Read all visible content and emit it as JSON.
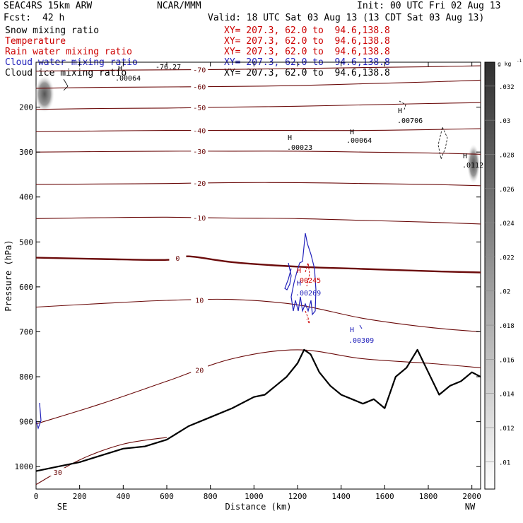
{
  "header": {
    "model": "SEAC4RS 15km ARW",
    "center": "NCAR/MMM",
    "init": "Init: 00 UTC Fri 02 Aug 13",
    "fcst_label": "Fcst:",
    "fcst_value": "42 h",
    "valid": "Valid: 18 UTC Sat 03 Aug 13 (13 CDT Sat 03 Aug 13)"
  },
  "fields": [
    {
      "name": "Snow mixing ratio",
      "xy": "XY= 207.3, 62.0 to  94.6,138.8",
      "color": "#000000"
    },
    {
      "name": "Temperature",
      "xy": "XY= 207.3, 62.0 to  94.6,138.8",
      "color": "#cc0000"
    },
    {
      "name": "Rain water mixing ratio",
      "xy": "XY= 207.3, 62.0 to  94.6,138.8",
      "color": "#cc0000"
    },
    {
      "name": "Cloud water mixing ratio",
      "xy": "XY= 207.3, 62.0 to  94.6,138.8",
      "color": "#2222bb"
    },
    {
      "name": "Cloud ice mixing ratio",
      "xy": "XY= 207.3, 62.0 to  94.6,138.8",
      "color": "#000000"
    }
  ],
  "chart_data": {
    "type": "line",
    "xlabel": "Distance (km)",
    "ylabel": "Pressure (hPa)",
    "xlim": [
      0,
      2040
    ],
    "ylim": [
      1050,
      100
    ],
    "x_ticks": [
      0,
      200,
      400,
      600,
      800,
      1000,
      1200,
      1400,
      1600,
      1800,
      2000
    ],
    "y_ticks": [
      200,
      300,
      400,
      500,
      600,
      700,
      800,
      900,
      1000
    ],
    "x_tick_labels": [
      "0",
      "200",
      "400",
      "600",
      "800",
      "1000",
      "1200",
      "1400",
      "1600",
      "1800",
      "2000"
    ],
    "y_tick_labels": [
      "200",
      "300",
      "400",
      "500",
      "600",
      "700",
      "800",
      "900",
      "1000"
    ],
    "left_end_label": "SE",
    "right_end_label": "NW",
    "colorbar": {
      "unit": "g kg",
      "unit_exponent": "-1",
      "ticks": [
        ".01",
        ".012",
        ".014",
        ".016",
        ".018",
        ".02",
        ".022",
        ".024",
        ".026",
        ".028",
        ".03",
        ".032"
      ]
    },
    "temperature_contours": [
      {
        "label": "-70",
        "x": [
          0,
          300,
          600,
          900,
          1200,
          1500,
          1800,
          2040
        ],
        "p": [
          120,
          118,
          117,
          116,
          114,
          112,
          110,
          108
        ]
      },
      {
        "label": "-60",
        "x": [
          0,
          300,
          600,
          900,
          1200,
          1500,
          1800,
          2040
        ],
        "p": [
          158,
          156,
          155,
          154,
          152,
          148,
          144,
          140
        ]
      },
      {
        "label": "-50",
        "x": [
          0,
          300,
          600,
          900,
          1200,
          1500,
          1800,
          2040
        ],
        "p": [
          205,
          203,
          202,
          200,
          198,
          195,
          192,
          190
        ]
      },
      {
        "label": "-40",
        "x": [
          0,
          300,
          600,
          900,
          1200,
          1500,
          1800,
          2040
        ],
        "p": [
          255,
          253,
          252,
          252,
          252,
          252,
          250,
          248
        ]
      },
      {
        "label": "-30",
        "x": [
          0,
          300,
          600,
          900,
          1200,
          1500,
          1800,
          2040
        ],
        "p": [
          300,
          299,
          298,
          298,
          298,
          300,
          302,
          305
        ]
      },
      {
        "label": "-20",
        "x": [
          0,
          300,
          600,
          900,
          1200,
          1500,
          1800,
          2040
        ],
        "p": [
          372,
          371,
          370,
          368,
          368,
          370,
          372,
          375
        ]
      },
      {
        "label": "-10",
        "x": [
          0,
          300,
          600,
          900,
          1200,
          1500,
          1800,
          2040
        ],
        "p": [
          448,
          446,
          445,
          447,
          448,
          452,
          456,
          460
        ]
      },
      {
        "label": "0",
        "x": [
          0,
          300,
          600,
          700,
          900,
          1200,
          1500,
          1800,
          2040
        ],
        "p": [
          535,
          538,
          540,
          532,
          545,
          555,
          560,
          565,
          568
        ]
      },
      {
        "label": "10",
        "x": [
          0,
          300,
          600,
          900,
          1200,
          1500,
          1800,
          2040
        ],
        "p": [
          645,
          637,
          630,
          628,
          640,
          670,
          690,
          700
        ]
      },
      {
        "label": "20",
        "x": [
          0,
          300,
          600,
          900,
          1200,
          1500,
          1800,
          2040
        ],
        "p": [
          905,
          860,
          810,
          760,
          740,
          760,
          770,
          780
        ]
      },
      {
        "label": "30",
        "x": [
          0,
          200,
          400,
          600
        ],
        "p": [
          1040,
          985,
          950,
          935
        ]
      }
    ],
    "terrain": {
      "x": [
        0,
        100,
        200,
        300,
        400,
        500,
        600,
        700,
        800,
        900,
        1000,
        1050,
        1100,
        1150,
        1200,
        1230,
        1260,
        1300,
        1350,
        1400,
        1450,
        1500,
        1550,
        1600,
        1650,
        1700,
        1750,
        1800,
        1850,
        1900,
        1950,
        2000,
        2040
      ],
      "p": [
        1010,
        1000,
        990,
        975,
        960,
        955,
        940,
        910,
        890,
        870,
        845,
        840,
        820,
        800,
        770,
        740,
        750,
        790,
        820,
        840,
        850,
        860,
        850,
        870,
        800,
        780,
        740,
        790,
        840,
        820,
        810,
        790,
        800
      ]
    },
    "annotations": [
      {
        "text": "H",
        "color": "#000000"
      },
      {
        "text": ".00064",
        "color": "#000000"
      },
      {
        "text": "-76.27",
        "color": "#000000"
      },
      {
        "text": "H",
        "color": "#000000"
      },
      {
        "text": ".00706",
        "color": "#000000"
      },
      {
        "text": "H",
        "color": "#000000"
      },
      {
        "text": ".00023",
        "color": "#000000"
      },
      {
        "text": "H",
        "color": "#000000"
      },
      {
        "text": ".00064",
        "color": "#000000"
      },
      {
        "text": "H",
        "color": "#000000"
      },
      {
        "text": ".0112",
        "color": "#000000"
      },
      {
        "text": "H",
        "color": "#cc0000"
      },
      {
        "text": ".00245",
        "color": "#cc0000"
      },
      {
        "text": "H",
        "color": "#2222bb"
      },
      {
        "text": ".00269",
        "color": "#2222bb"
      },
      {
        "text": "H",
        "color": "#2222bb"
      },
      {
        "text": ".00309",
        "color": "#2222bb"
      }
    ]
  }
}
